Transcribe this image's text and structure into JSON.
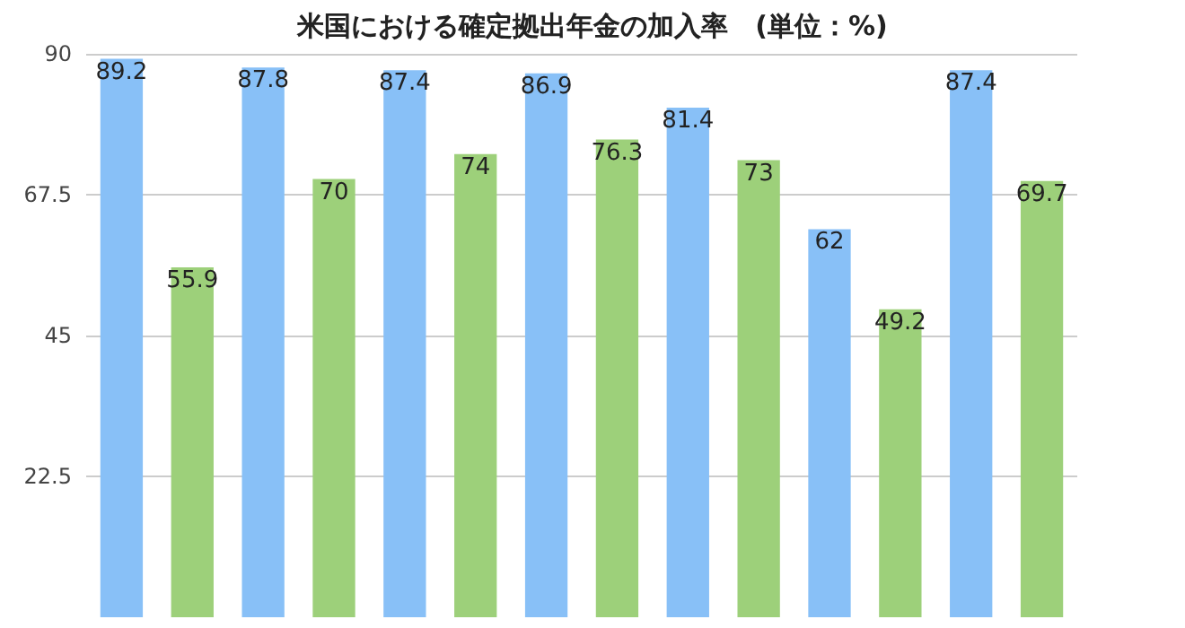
{
  "chart_data": {
    "type": "bar",
    "title": "米国における確定拠出年金の加入率　(単位：%)",
    "categories": [
      null,
      null,
      null,
      null,
      null,
      null,
      null,
      null,
      null,
      null,
      null,
      null,
      null,
      null
    ],
    "values": [
      89.2,
      55.9,
      87.8,
      70,
      87.4,
      74,
      86.9,
      76.3,
      81.4,
      73,
      62,
      49.2,
      87.4,
      69.7
    ],
    "colors": [
      "#88c0f7",
      "#9dd07a",
      "#88c0f7",
      "#9dd07a",
      "#88c0f7",
      "#9dd07a",
      "#88c0f7",
      "#9dd07a",
      "#88c0f7",
      "#9dd07a",
      "#88c0f7",
      "#9dd07a",
      "#88c0f7",
      "#9dd07a"
    ],
    "ylim": [
      0,
      90
    ],
    "yticks": [
      22.5,
      45,
      67.5,
      90
    ],
    "grid": "y",
    "data_labels": true,
    "tick_labels": "y"
  }
}
